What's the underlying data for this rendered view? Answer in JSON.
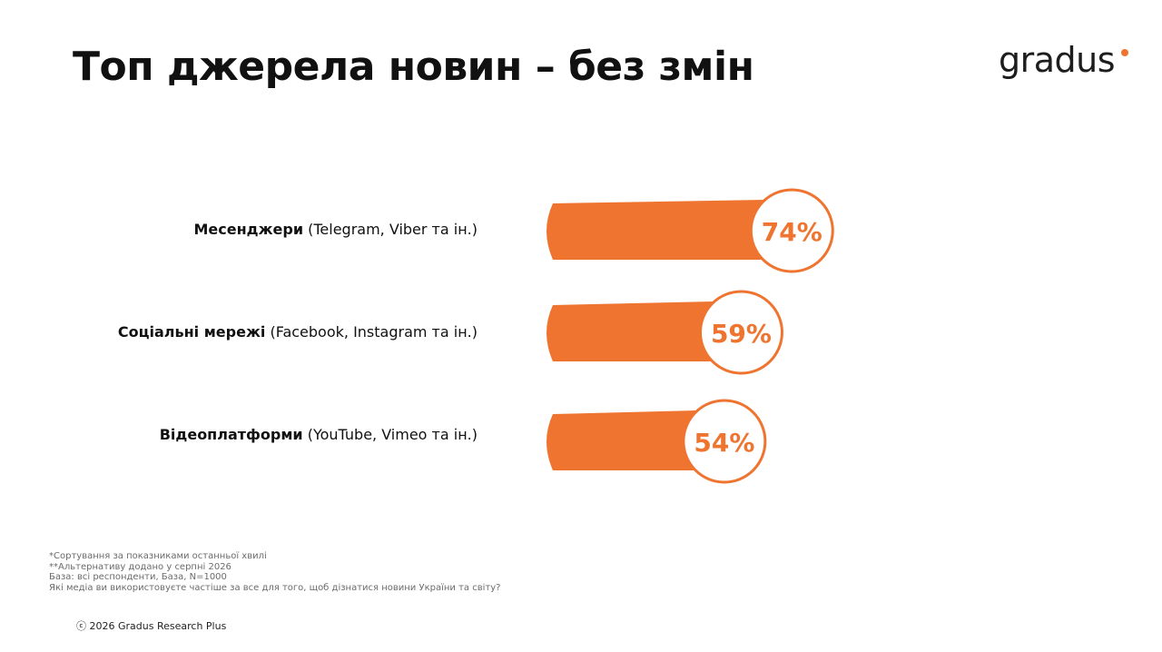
{
  "title": "Топ джерела новин – без змін",
  "logo": {
    "text": "gradus",
    "dot_color": "#ee7430"
  },
  "colors": {
    "bar": "#ee7430",
    "value_text": "#ee7430",
    "bubble_fill": "#ffffff"
  },
  "chart_data": {
    "type": "bar",
    "orientation": "horizontal",
    "categories": [
      {
        "name": "Месенджери",
        "detail": "(Telegram, Viber та ін.)"
      },
      {
        "name": "Соціальні мережі",
        "detail": "(Facebook, Instagram та ін.)"
      },
      {
        "name": "Відеоплатформи",
        "detail": "(YouTube, Vimeo та ін.)"
      }
    ],
    "values": [
      74,
      59,
      54
    ],
    "value_labels": [
      "74%",
      "59%",
      "54%"
    ],
    "unit": "%",
    "xlim": [
      0,
      100
    ],
    "grid": false,
    "legend": "none"
  },
  "notes": [
    "*Сортування за показниками останньої хвилі",
    "**Альтернативу додано у серпні 2026",
    "База: всі респонденти, База, N=1000",
    "Які медіа ви використовуєте частіше за все для того, щоб дізнатися новини України та світу?"
  ],
  "copyright": "ⓒ 2026 Gradus Research Plus"
}
